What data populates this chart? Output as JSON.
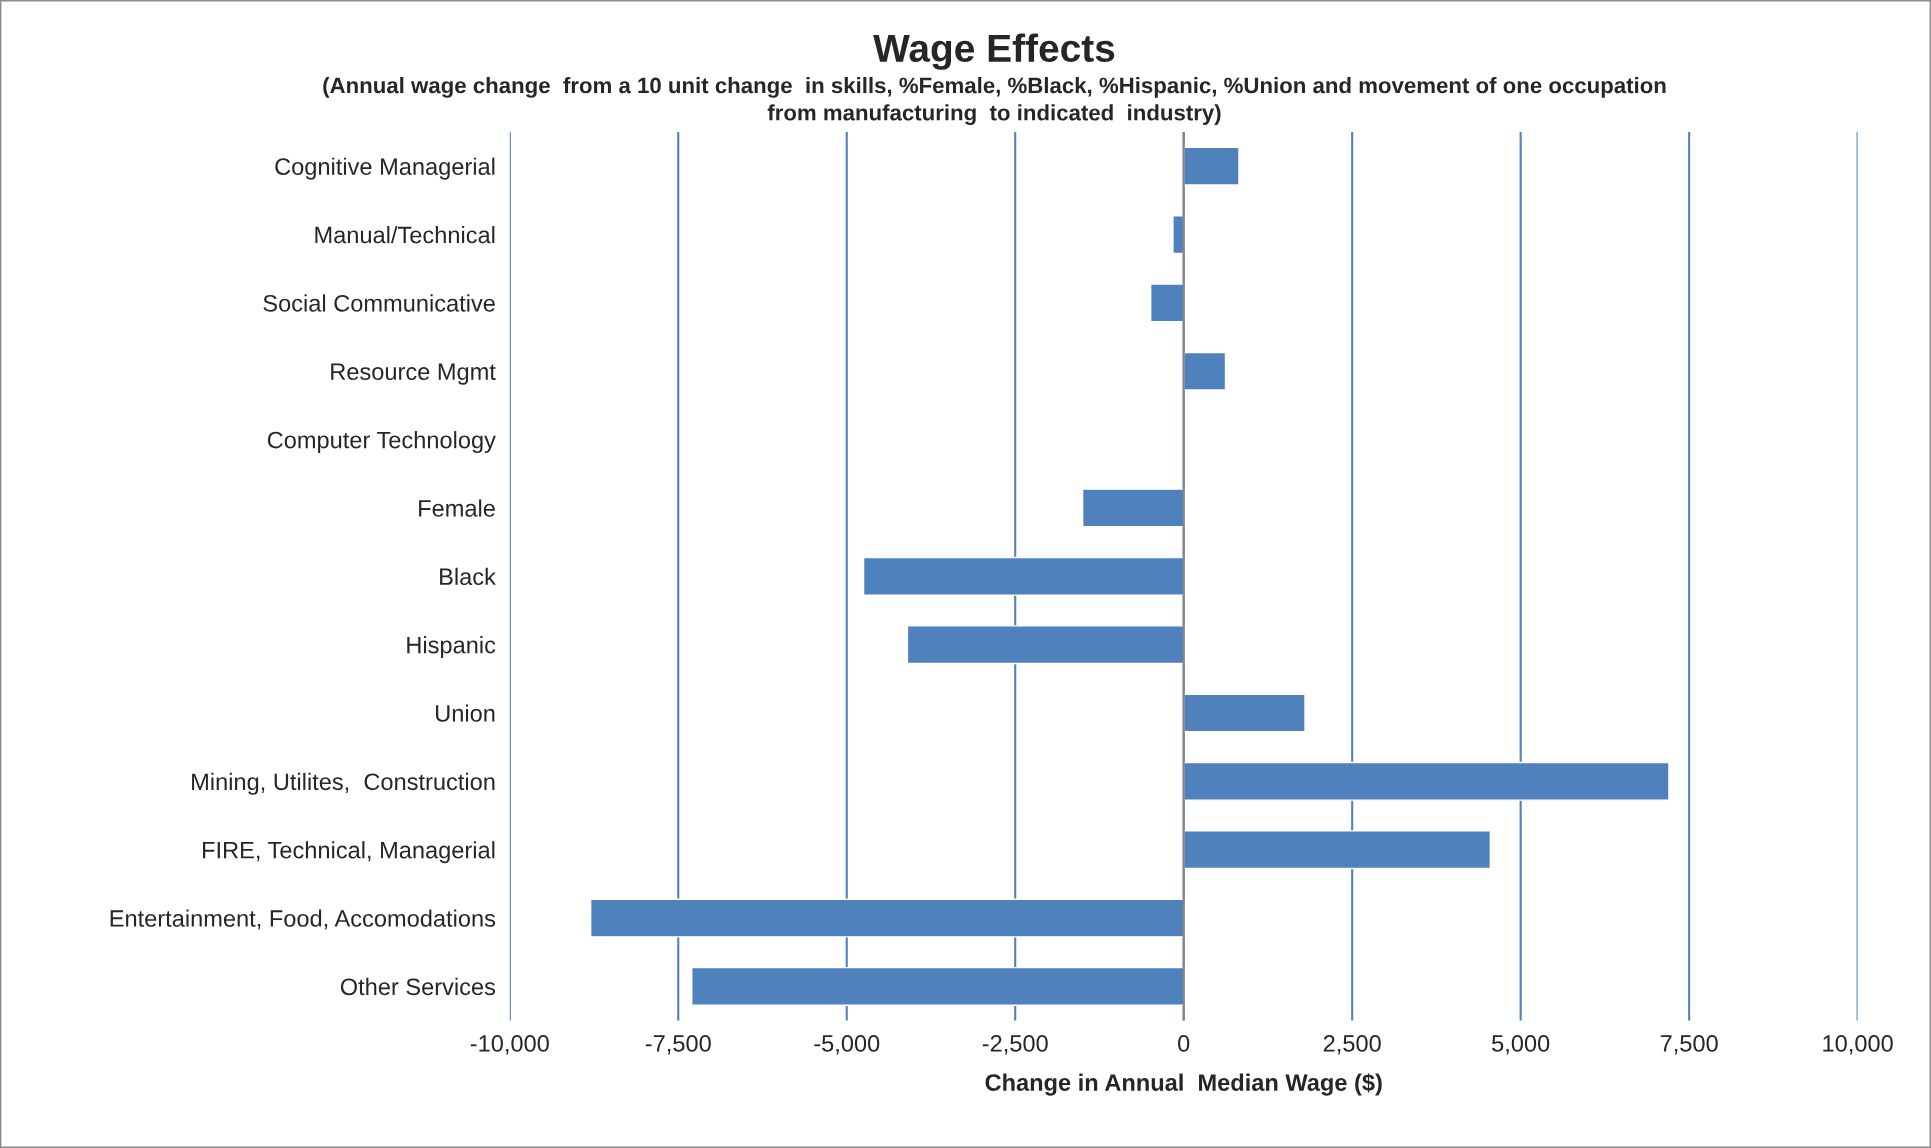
{
  "chart_data": {
    "type": "bar",
    "orientation": "horizontal",
    "title": "Wage Effects",
    "subtitle": "(Annual wage change  from a 10 unit change  in skills, %Female, %Black, %Hispanic, %Union and movement of one occupation\nfrom manufacturing  to indicated  industry)",
    "xlabel": "Change in Annual  Median Wage ($)",
    "categories": [
      "Cognitive Managerial",
      "Manual/Technical",
      "Social Communicative",
      "Resource Mgmt",
      "Computer Technology",
      "Female",
      "Black",
      "Hispanic",
      "Union",
      "Mining, Utilites,  Construction",
      "FIRE, Technical, Managerial",
      "Entertainment, Food, Accomodations",
      "Other Services"
    ],
    "values": [
      820,
      -160,
      -490,
      620,
      null,
      -1500,
      -4750,
      -4100,
      1800,
      7200,
      4550,
      -8800,
      -7300
    ],
    "color": "#4f81bd",
    "xlim": [
      -10000,
      10000
    ],
    "xticks": [
      {
        "value": -10000,
        "label": "-10,000"
      },
      {
        "value": -7500,
        "label": "-7,500"
      },
      {
        "value": -5000,
        "label": "-5,000"
      },
      {
        "value": -2500,
        "label": "-2,500"
      },
      0,
      {
        "value": 2500,
        "label": "2,500"
      },
      {
        "value": 5000,
        "label": "5,000"
      },
      {
        "value": 7500,
        "label": "7,500"
      },
      {
        "value": 10000,
        "label": "10,000"
      }
    ],
    "grid": "x",
    "legend": false
  }
}
